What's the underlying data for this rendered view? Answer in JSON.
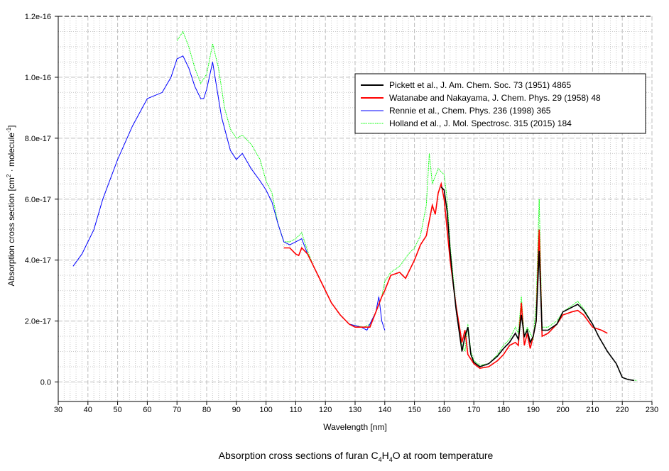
{
  "chart_data": {
    "type": "line",
    "title": "Absorption cross sections of furan",
    "title_formula": {
      "c": "C",
      "c_n": "4",
      "h": "H",
      "h_n": "4",
      "o": "O"
    },
    "title_suffix": "at room temperature",
    "xlabel": "Wavelength [nm]",
    "ylabel": {
      "main": "Absorption cross section [cm",
      "sup1": "2",
      "mid": " · molecule",
      "sup2": "-1",
      "end": "]"
    },
    "xlim": [
      30,
      230
    ],
    "ylim": [
      -0.64,
      12
    ],
    "y_unit_multiplier": 1e-17,
    "x_ticks": [
      30,
      40,
      50,
      60,
      70,
      80,
      90,
      100,
      110,
      120,
      130,
      140,
      150,
      160,
      170,
      180,
      190,
      200,
      210,
      220,
      230
    ],
    "y_ticks": [
      0,
      2,
      4,
      6,
      8,
      10,
      12
    ],
    "y_tick_labels": [
      "0.0",
      "2.0e-17",
      "4.0e-17",
      "6.0e-17",
      "8.0e-17",
      "1.0e-16",
      "1.2e-16"
    ],
    "grid": true,
    "legend_position": "top-right",
    "series": [
      {
        "name": "Pickett et al., J. Am. Chem. Soc. 73 (1951) 4865",
        "color": "#000000",
        "style": "solid",
        "x": [
          159,
          160,
          161,
          162,
          163,
          164,
          165,
          166,
          167,
          168,
          169,
          170,
          172,
          175,
          178,
          180,
          182,
          184,
          185,
          186,
          187,
          188,
          189,
          190,
          191,
          192,
          193,
          195,
          198,
          200,
          203,
          205,
          207,
          210,
          212,
          215,
          218,
          220,
          222,
          224
        ],
        "y": [
          6.4,
          6.3,
          5.6,
          4.3,
          3.3,
          2.4,
          1.7,
          1.0,
          1.5,
          1.8,
          0.9,
          0.65,
          0.5,
          0.6,
          0.85,
          1.1,
          1.3,
          1.6,
          1.4,
          2.2,
          1.5,
          1.7,
          1.3,
          1.5,
          2.0,
          4.3,
          1.7,
          1.7,
          1.9,
          2.3,
          2.45,
          2.55,
          2.35,
          1.9,
          1.5,
          1.0,
          0.6,
          0.15,
          0.08,
          0.05
        ]
      },
      {
        "name": "Watanabe and Nakayama, J. Chem. Phys. 29 (1958) 48",
        "color": "#ff0000",
        "style": "solid",
        "x": [
          106,
          108,
          110,
          111,
          112,
          114,
          116,
          118,
          120,
          122,
          125,
          128,
          130,
          133,
          135,
          137,
          139,
          140,
          142,
          145,
          147,
          148,
          150,
          152,
          154,
          156,
          157,
          158,
          159,
          160,
          161,
          162,
          164,
          166,
          167,
          168,
          170,
          172,
          175,
          178,
          180,
          182,
          184,
          185,
          186,
          187,
          188,
          189,
          190,
          191,
          192,
          193,
          195,
          198,
          200,
          203,
          205,
          207,
          210,
          213,
          215
        ],
        "y": [
          4.4,
          4.4,
          4.2,
          4.15,
          4.4,
          4.2,
          3.8,
          3.4,
          3.0,
          2.6,
          2.2,
          1.9,
          1.8,
          1.8,
          1.8,
          2.3,
          2.8,
          3.0,
          3.5,
          3.6,
          3.4,
          3.6,
          4.0,
          4.5,
          4.8,
          5.8,
          5.5,
          6.2,
          6.5,
          6.0,
          5.0,
          4.0,
          2.5,
          1.3,
          1.7,
          0.9,
          0.6,
          0.45,
          0.5,
          0.7,
          0.9,
          1.2,
          1.3,
          1.2,
          2.6,
          1.2,
          1.6,
          1.1,
          1.5,
          2.0,
          5.0,
          1.5,
          1.6,
          1.9,
          2.2,
          2.3,
          2.35,
          2.2,
          1.8,
          1.7,
          1.6
        ]
      },
      {
        "name": "Rennie et al., Chem. Phys. 236 (1998) 365",
        "color": "#0000ff",
        "style": "solid",
        "x": [
          35,
          38,
          40,
          42,
          45,
          50,
          55,
          60,
          65,
          68,
          70,
          72,
          74,
          76,
          78,
          79,
          80,
          82,
          83,
          85,
          88,
          90,
          92,
          95,
          98,
          100,
          102,
          104,
          106,
          108,
          110,
          112,
          114,
          116,
          118,
          120,
          122,
          125,
          128,
          130,
          132,
          134,
          135,
          137,
          138,
          139,
          140
        ],
        "y": [
          3.8,
          4.2,
          4.6,
          5.0,
          6.0,
          7.3,
          8.4,
          9.3,
          9.5,
          10.0,
          10.6,
          10.7,
          10.3,
          9.7,
          9.3,
          9.3,
          9.6,
          10.5,
          9.9,
          8.7,
          7.6,
          7.3,
          7.5,
          7.0,
          6.6,
          6.3,
          5.9,
          5.2,
          4.6,
          4.5,
          4.6,
          4.7,
          4.2,
          3.8,
          3.4,
          3.0,
          2.6,
          2.2,
          1.9,
          1.85,
          1.8,
          1.7,
          1.9,
          2.3,
          2.8,
          2.0,
          1.7
        ]
      },
      {
        "name": "Holland et al., J. Mol. Spectrosc. 315 (2015) 184",
        "color": "#00ff00",
        "style": "dotted",
        "x": [
          70,
          72,
          74,
          76,
          78,
          80,
          82,
          84,
          86,
          88,
          90,
          92,
          95,
          98,
          100,
          102,
          104,
          106,
          108,
          110,
          112,
          114,
          116,
          118,
          120,
          122,
          125,
          128,
          130,
          133,
          135,
          137,
          139,
          140,
          142,
          145,
          148,
          150,
          152,
          154,
          155,
          156,
          158,
          160,
          161,
          162,
          163,
          164,
          165,
          166,
          167,
          168,
          169,
          170,
          172,
          175,
          178,
          180,
          182,
          184,
          185,
          186,
          187,
          188,
          190,
          191,
          192,
          193,
          195,
          198,
          200,
          203,
          205,
          207,
          210,
          212,
          215,
          218,
          220,
          222,
          225
        ],
        "y": [
          11.2,
          11.5,
          11.0,
          10.3,
          9.8,
          10.1,
          11.1,
          10.3,
          9.0,
          8.3,
          8.0,
          8.1,
          7.8,
          7.3,
          6.6,
          6.2,
          5.2,
          4.6,
          4.6,
          4.7,
          4.9,
          4.3,
          3.8,
          3.4,
          3.0,
          2.6,
          2.2,
          1.9,
          1.85,
          1.8,
          1.9,
          2.3,
          2.8,
          3.3,
          3.6,
          3.8,
          4.2,
          4.4,
          4.8,
          5.8,
          7.5,
          6.5,
          7.0,
          6.8,
          6.0,
          4.5,
          3.5,
          2.5,
          1.8,
          1.2,
          1.0,
          1.9,
          1.0,
          0.7,
          0.55,
          0.6,
          0.9,
          1.2,
          1.4,
          1.8,
          1.6,
          2.8,
          1.5,
          1.8,
          1.4,
          2.6,
          6.0,
          1.8,
          1.8,
          2.0,
          2.3,
          2.5,
          2.65,
          2.4,
          1.9,
          1.5,
          1.0,
          0.6,
          0.15,
          0.08,
          0.05
        ]
      }
    ]
  }
}
